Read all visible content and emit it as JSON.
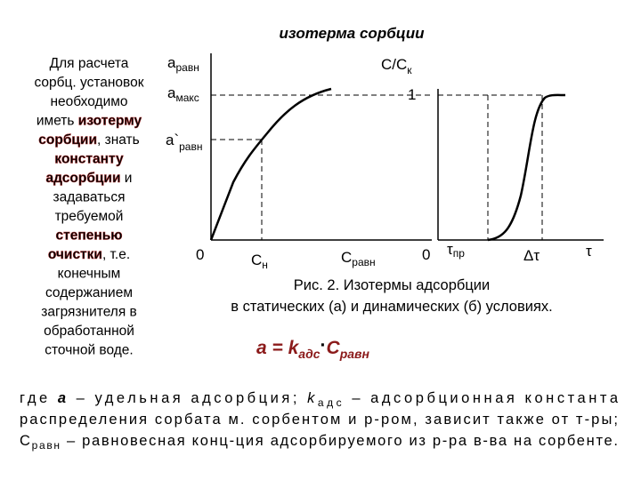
{
  "title": "изотерма сорбции",
  "left_text": {
    "lines": [
      [
        "Для расчета"
      ],
      [
        "сорбц. установок"
      ],
      [
        "необходимо"
      ],
      [
        "иметь ",
        "изотерму"
      ],
      [
        "сорбции",
        ", знать"
      ],
      [
        "константу"
      ],
      [
        "адсорбции",
        " и"
      ],
      [
        "задаваться"
      ],
      [
        "требуемой"
      ],
      [
        "степенью"
      ],
      [
        "очистки",
        ", т.е."
      ],
      [
        "конечным"
      ],
      [
        "содержанием"
      ],
      [
        "загрязнителя в"
      ],
      [
        "обработанной"
      ],
      [
        "сточной воде."
      ]
    ]
  },
  "static_plot": {
    "y_labels": [
      {
        "main": "a",
        "sub": "равн"
      },
      {
        "main": "a",
        "sub": "макс"
      },
      {
        "main": "a`",
        "sub": "равн"
      }
    ],
    "origin": "0",
    "x_labels": [
      {
        "main": "C",
        "sub": "н"
      },
      {
        "main": "C",
        "sub": "равн"
      }
    ]
  },
  "dynamic_plot": {
    "y_label": {
      "main": "C/C",
      "sub": "к"
    },
    "y_one": "1",
    "origin": "0",
    "x_labels": [
      {
        "main": "τ",
        "sub": "пр"
      },
      {
        "main": "Δτ"
      },
      {
        "main": "τ"
      }
    ]
  },
  "caption": [
    "Рис. 2. Изотермы адсорбции",
    "в статических (а) и динамических (б) условиях."
  ],
  "formula": {
    "a": "а = k",
    "k_sub": "адс",
    "dot": "·",
    "c": "С",
    "c_sub": "равн"
  },
  "footer": [
    {
      "parts": [
        "где ",
        "а",
        " – удельная адсорбция;   ",
        "k",
        "адс",
        " – адсорбционная константа"
      ]
    },
    {
      "parts": [
        "распределения сорбата м. сорбентом и р-ром, зависит также от т-ры;"
      ]
    },
    {
      "parts": [
        "C",
        "равн",
        " – равновесная конц-ция адсорбируемого из р-ра в-ва на сорбенте."
      ]
    }
  ]
}
